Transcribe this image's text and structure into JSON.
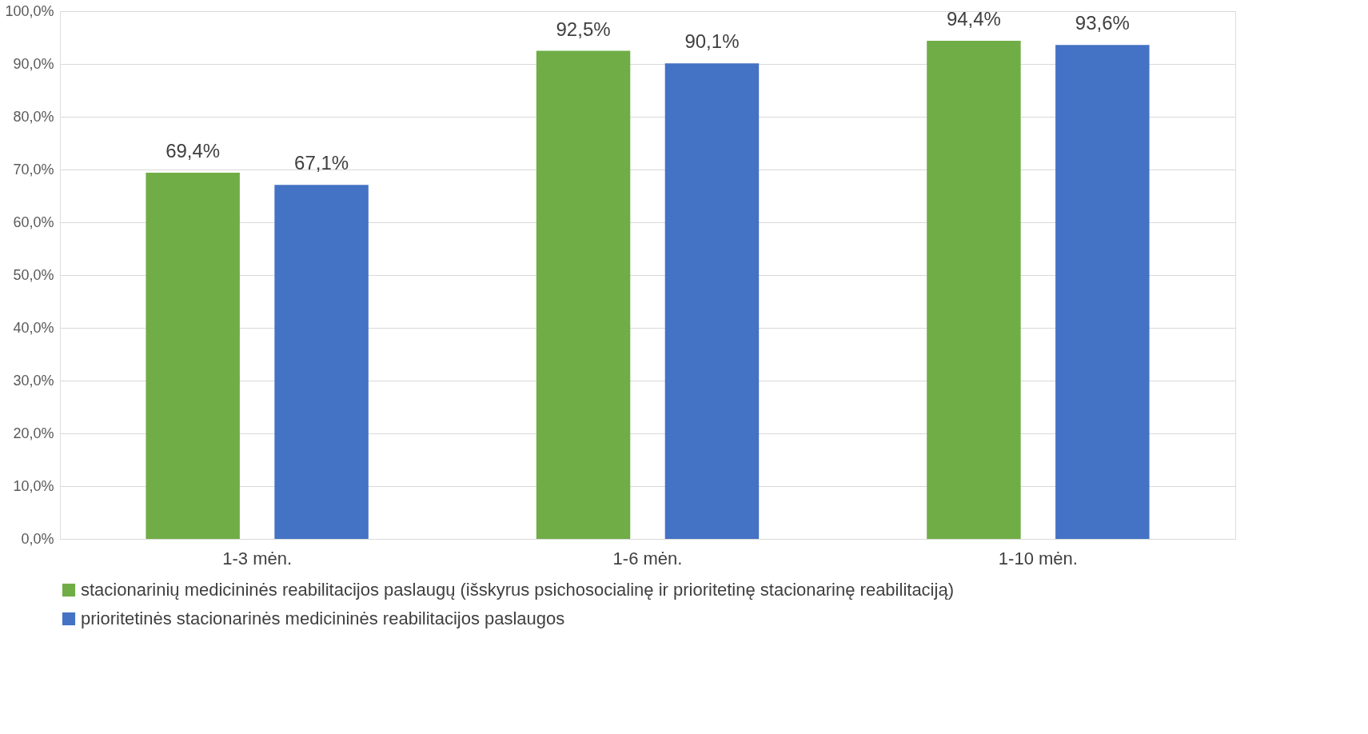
{
  "chart_data": {
    "type": "bar",
    "categories": [
      "1-3 mėn.",
      "1-6 mėn.",
      "1-10 mėn."
    ],
    "series": [
      {
        "name": "stacionarinių medicininės reabilitacijos paslaugų (išskyrus psichosocialinę ir prioritetinę stacionarinę reabilitaciją)",
        "color": "#70ad47",
        "values": [
          69.4,
          92.5,
          94.4
        ],
        "value_labels": [
          "69,4%",
          "92,5%",
          "94,4%"
        ]
      },
      {
        "name": "prioritetinės stacionarinės medicininės reabilitacijos paslaugos",
        "color": "#4472c4",
        "values": [
          67.1,
          90.1,
          93.6
        ],
        "value_labels": [
          "67,1%",
          "90,1%",
          "93,6%"
        ]
      }
    ],
    "ylim": [
      0,
      100
    ],
    "yticks": [
      {
        "value": 0,
        "label": "0,0%"
      },
      {
        "value": 10,
        "label": "10,0%"
      },
      {
        "value": 20,
        "label": "20,0%"
      },
      {
        "value": 30,
        "label": "30,0%"
      },
      {
        "value": 40,
        "label": "40,0%"
      },
      {
        "value": 50,
        "label": "50,0%"
      },
      {
        "value": 60,
        "label": "60,0%"
      },
      {
        "value": 70,
        "label": "70,0%"
      },
      {
        "value": 80,
        "label": "80,0%"
      },
      {
        "value": 90,
        "label": "90,0%"
      },
      {
        "value": 100,
        "label": "100,0%"
      }
    ],
    "grid": "y",
    "legend": "bottom"
  }
}
